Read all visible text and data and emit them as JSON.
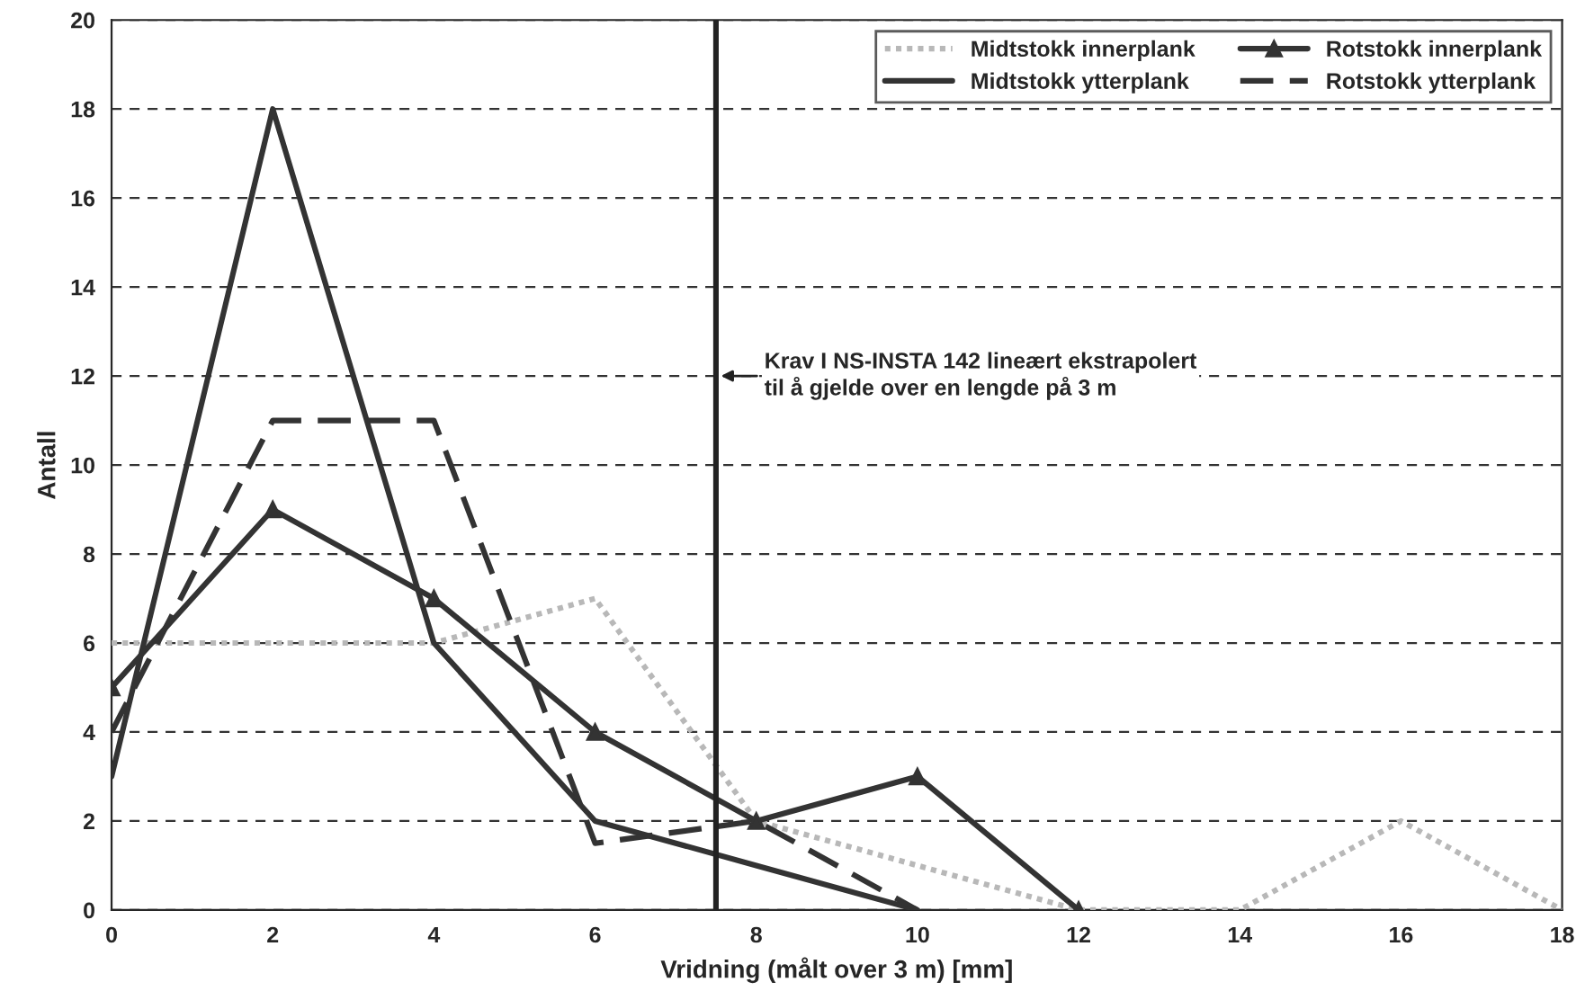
{
  "chart_data": {
    "type": "line",
    "xlabel": "Vridning (målt over 3 m) [mm]",
    "ylabel": "Antall",
    "series": [
      {
        "name": "Midtstokk innerplank",
        "color": "#b8b8b8",
        "line_style": "dotted",
        "marker": "none",
        "x": [
          0,
          2,
          4,
          6,
          8,
          10,
          12,
          14,
          16,
          18
        ],
        "values": [
          6,
          6,
          6,
          7,
          2,
          1,
          0,
          0,
          2,
          0
        ]
      },
      {
        "name": "Midtstokk ytterplank",
        "color": "#333333",
        "line_style": "solid",
        "marker": "none",
        "x": [
          0,
          2,
          4,
          6,
          8,
          10
        ],
        "values": [
          3,
          18,
          6,
          2,
          1,
          0
        ]
      },
      {
        "name": "Rotstokk innerplank",
        "color": "#333333",
        "line_style": "solid",
        "marker": "triangle",
        "x": [
          0,
          2,
          4,
          6,
          8,
          10,
          12
        ],
        "values": [
          5,
          9,
          7,
          4,
          2,
          3,
          0
        ]
      },
      {
        "name": "Rotstokk ytterplank",
        "color": "#333333",
        "line_style": "dashed",
        "marker": "none",
        "x": [
          0,
          2,
          4,
          6,
          8,
          10
        ],
        "values": [
          4,
          11,
          11,
          1.5,
          2,
          0
        ]
      }
    ],
    "xlim": [
      0,
      18
    ],
    "xticks": [
      0,
      2,
      4,
      6,
      8,
      10,
      12,
      14,
      16,
      18
    ],
    "ylim": [
      0,
      20
    ],
    "yticks": [
      0,
      2,
      4,
      6,
      8,
      10,
      12,
      14,
      16,
      18,
      20
    ],
    "grid": "y",
    "legend": "top right",
    "ref_lines": [
      {
        "axis": "x",
        "value": 7.5,
        "color": "#222222",
        "line_style": "solid"
      }
    ],
    "annotations": [
      {
        "text": "Krav I NS-INSTA 142 lineært ekstrapolert\ntil å gjelde over en lengde på 3 m",
        "x": 7.5,
        "y": 12
      }
    ]
  }
}
